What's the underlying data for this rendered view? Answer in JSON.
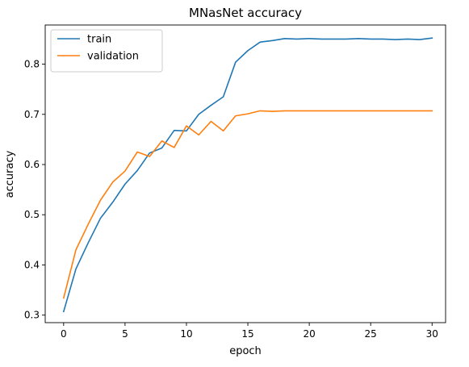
{
  "chart_data": {
    "type": "line",
    "title": "MNasNet accuracy",
    "xlabel": "epoch",
    "ylabel": "accuracy",
    "xlim": [
      -1.5,
      31.1
    ],
    "ylim": [
      0.285,
      0.878
    ],
    "xticks": [
      0,
      5,
      10,
      15,
      20,
      25,
      30
    ],
    "xtick_labels": [
      "0",
      "5",
      "10",
      "15",
      "20",
      "25",
      "30"
    ],
    "yticks": [
      0.3,
      0.4,
      0.5,
      0.6,
      0.7,
      0.8
    ],
    "ytick_labels": [
      "0.3",
      "0.4",
      "0.5",
      "0.6",
      "0.7",
      "0.8"
    ],
    "grid": false,
    "legend_position": "top-left",
    "x": [
      0,
      1,
      2,
      3,
      4,
      5,
      6,
      7,
      8,
      9,
      10,
      11,
      12,
      13,
      14,
      15,
      16,
      17,
      18,
      19,
      20,
      21,
      22,
      23,
      24,
      25,
      26,
      27,
      28,
      29,
      30
    ],
    "series": [
      {
        "name": "train",
        "color": "#1f77b4",
        "values": [
          0.307,
          0.392,
          0.444,
          0.493,
          0.525,
          0.561,
          0.588,
          0.623,
          0.633,
          0.668,
          0.667,
          0.7,
          0.718,
          0.735,
          0.804,
          0.827,
          0.844,
          0.847,
          0.851,
          0.85,
          0.851,
          0.85,
          0.85,
          0.85,
          0.851,
          0.85,
          0.85,
          0.849,
          0.85,
          0.849,
          0.852
        ]
      },
      {
        "name": "validation",
        "color": "#ff7f0e",
        "values": [
          0.334,
          0.43,
          0.481,
          0.529,
          0.565,
          0.587,
          0.625,
          0.616,
          0.647,
          0.634,
          0.677,
          0.659,
          0.686,
          0.667,
          0.697,
          0.701,
          0.707,
          0.706,
          0.707,
          0.707,
          0.707,
          0.707,
          0.707,
          0.707,
          0.707,
          0.707,
          0.707,
          0.707,
          0.707,
          0.707,
          0.707
        ]
      }
    ]
  }
}
